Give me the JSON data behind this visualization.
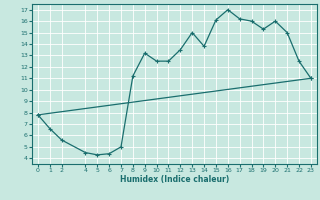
{
  "title": "",
  "xlabel": "Humidex (Indice chaleur)",
  "ylabel": "",
  "bg_color": "#c8e8e0",
  "grid_color": "#ffffff",
  "line_color": "#1a6e6e",
  "xlim": [
    -0.5,
    23.5
  ],
  "ylim": [
    3.5,
    17.5
  ],
  "xticks": [
    0,
    1,
    2,
    4,
    5,
    6,
    7,
    8,
    9,
    10,
    11,
    12,
    13,
    14,
    15,
    16,
    17,
    18,
    19,
    20,
    21,
    22,
    23
  ],
  "yticks": [
    4,
    5,
    6,
    7,
    8,
    9,
    10,
    11,
    12,
    13,
    14,
    15,
    16,
    17
  ],
  "line1_x": [
    0,
    1,
    2,
    4,
    5,
    6,
    7,
    8,
    9,
    10,
    11,
    12,
    13,
    14,
    15,
    16,
    17,
    18,
    19,
    20,
    21,
    22,
    23
  ],
  "line1_y": [
    7.8,
    6.6,
    5.6,
    4.5,
    4.3,
    4.4,
    5.0,
    11.2,
    13.2,
    12.5,
    12.5,
    13.5,
    15.0,
    13.8,
    16.1,
    17.0,
    16.2,
    16.0,
    15.3,
    16.0,
    15.0,
    12.5,
    11.0
  ],
  "line2_x": [
    0,
    23
  ],
  "line2_y": [
    7.8,
    11.0
  ]
}
